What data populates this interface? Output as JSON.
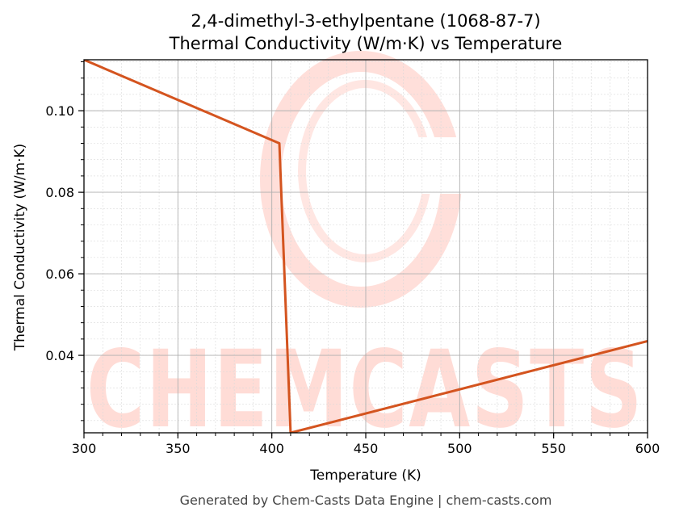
{
  "chart_data": {
    "type": "line",
    "title_line1": "2,4-dimethyl-3-ethylpentane (1068-87-7)",
    "title_line2": "Thermal Conductivity (W/m·K) vs Temperature",
    "xlabel": "Temperature (K)",
    "ylabel": "Thermal Conductivity (W/m·K)",
    "xlim": [
      300,
      600
    ],
    "ylim": [
      0.021,
      0.1125
    ],
    "xticks": [
      300,
      350,
      400,
      450,
      500,
      550,
      600
    ],
    "xtick_labels": [
      "300",
      "350",
      "400",
      "450",
      "500",
      "550",
      "600"
    ],
    "yticks": [
      0.04,
      0.06,
      0.08,
      0.1
    ],
    "ytick_labels": [
      "0.04",
      "0.06",
      "0.08",
      "0.10"
    ],
    "grid": true,
    "legend": "none",
    "series": [
      {
        "color": "#d4541f",
        "x": [
          300,
          404,
          410,
          600
        ],
        "y": [
          0.1125,
          0.092,
          0.021,
          0.0435
        ]
      }
    ]
  },
  "watermark": {
    "text": "CHEMCASTS",
    "color": "#ffdcd6"
  },
  "footer": "Generated by Chem-Casts Data Engine | chem-casts.com"
}
